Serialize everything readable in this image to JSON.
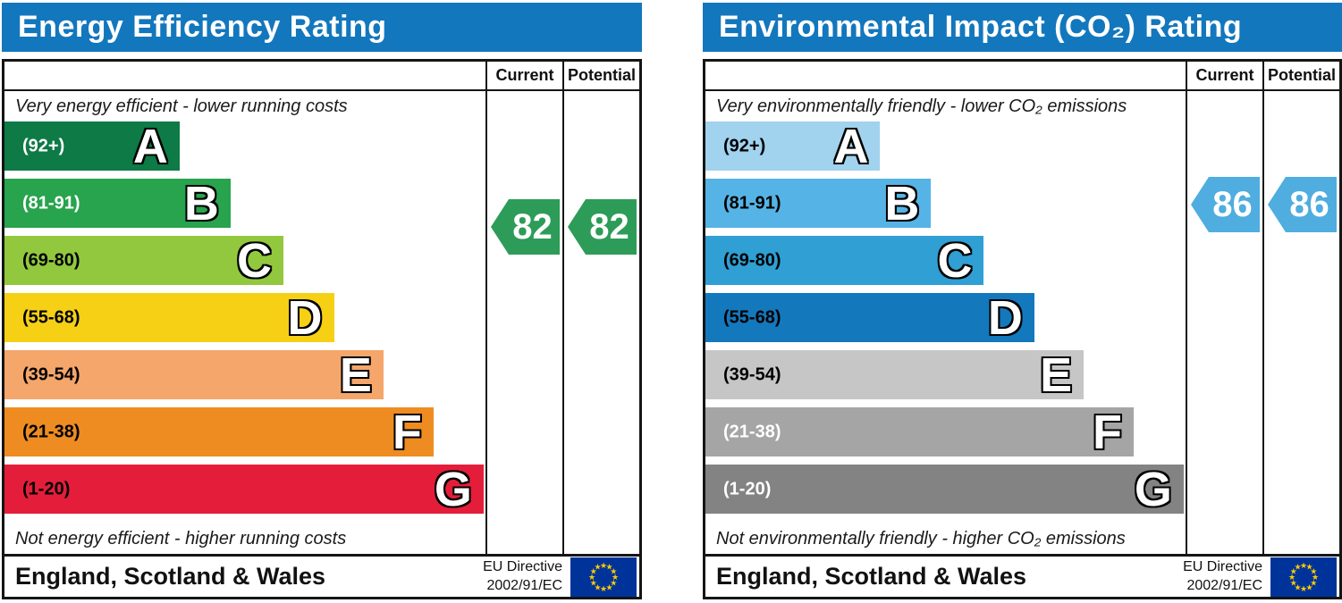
{
  "charts": [
    {
      "title": "Energy Efficiency Rating",
      "columns": {
        "current": "Current",
        "potential": "Potential"
      },
      "top_note": "Very energy efficient - lower running costs",
      "bottom_note": "Not energy efficient - higher running costs",
      "bands": [
        {
          "grade": "A",
          "range": "(92+)",
          "color": "#0e7a46",
          "label_color": "#ffffff",
          "width_pct": 36.4
        },
        {
          "grade": "B",
          "range": "(81-91)",
          "color": "#28a34e",
          "label_color": "#ffffff",
          "width_pct": 47.0
        },
        {
          "grade": "C",
          "range": "(69-80)",
          "color": "#92c83e",
          "label_color": "#000000",
          "width_pct": 58.0
        },
        {
          "grade": "D",
          "range": "(55-68)",
          "color": "#f5d015",
          "label_color": "#000000",
          "width_pct": 68.5
        },
        {
          "grade": "E",
          "range": "(39-54)",
          "color": "#f5a66b",
          "label_color": "#000000",
          "width_pct": 78.8
        },
        {
          "grade": "F",
          "range": "(21-38)",
          "color": "#ee8c22",
          "label_color": "#000000",
          "width_pct": 89.2
        },
        {
          "grade": "G",
          "range": "(1-20)",
          "color": "#e41e3a",
          "label_color": "#000000",
          "width_pct": 99.6
        }
      ],
      "current_value": "82",
      "potential_value": "82",
      "arrow_color": "#2d9c58",
      "footer": {
        "region": "England, Scotland & Wales",
        "directive_line1": "EU Directive",
        "directive_line2": "2002/91/EC"
      }
    },
    {
      "title": "Environmental Impact (CO₂) Rating",
      "columns": {
        "current": "Current",
        "potential": "Potential"
      },
      "top_note": "Very environmentally friendly - lower CO₂ emissions",
      "bottom_note": "Not environmentally friendly - higher CO₂ emissions",
      "bands": [
        {
          "grade": "A",
          "range": "(92+)",
          "color": "#a1d2ee",
          "label_color": "#000000",
          "width_pct": 36.4
        },
        {
          "grade": "B",
          "range": "(81-91)",
          "color": "#56b3e5",
          "label_color": "#000000",
          "width_pct": 47.0
        },
        {
          "grade": "C",
          "range": "(69-80)",
          "color": "#2f9fd4",
          "label_color": "#000000",
          "width_pct": 58.0
        },
        {
          "grade": "D",
          "range": "(55-68)",
          "color": "#1478bd",
          "label_color": "#000000",
          "width_pct": 68.5
        },
        {
          "grade": "E",
          "range": "(39-54)",
          "color": "#c6c6c6",
          "label_color": "#000000",
          "width_pct": 78.8
        },
        {
          "grade": "F",
          "range": "(21-38)",
          "color": "#a5a5a5",
          "label_color": "#ffffff",
          "width_pct": 89.2
        },
        {
          "grade": "G",
          "range": "(1-20)",
          "color": "#838383",
          "label_color": "#ffffff",
          "width_pct": 99.6
        }
      ],
      "current_value": "86",
      "potential_value": "86",
      "arrow_color": "#4fade0",
      "footer": {
        "region": "England, Scotland & Wales",
        "directive_line1": "EU Directive",
        "directive_line2": "2002/91/EC"
      }
    }
  ],
  "flag_colors": {
    "field": "#003399",
    "stars": "#ffcc00"
  },
  "chart_data": [
    {
      "type": "bar",
      "title": "Energy Efficiency Rating",
      "categories": [
        "A (92+)",
        "B (81-91)",
        "C (69-80)",
        "D (55-68)",
        "E (39-54)",
        "F (21-38)",
        "G (1-20)"
      ],
      "relative_bar_lengths_pct": [
        36.4,
        47.0,
        58.0,
        68.5,
        78.8,
        89.2,
        99.6
      ],
      "current": 82,
      "potential": 82,
      "current_band": "B",
      "potential_band": "B",
      "scale_range": [
        1,
        100
      ],
      "region": "England, Scotland & Wales",
      "directive": "EU Directive 2002/91/EC"
    },
    {
      "type": "bar",
      "title": "Environmental Impact (CO₂) Rating",
      "categories": [
        "A (92+)",
        "B (81-91)",
        "C (69-80)",
        "D (55-68)",
        "E (39-54)",
        "F (21-38)",
        "G (1-20)"
      ],
      "relative_bar_lengths_pct": [
        36.4,
        47.0,
        58.0,
        68.5,
        78.8,
        89.2,
        99.6
      ],
      "current": 86,
      "potential": 86,
      "current_band": "B",
      "potential_band": "B",
      "scale_range": [
        1,
        100
      ],
      "region": "England, Scotland & Wales",
      "directive": "EU Directive 2002/91/EC"
    }
  ]
}
